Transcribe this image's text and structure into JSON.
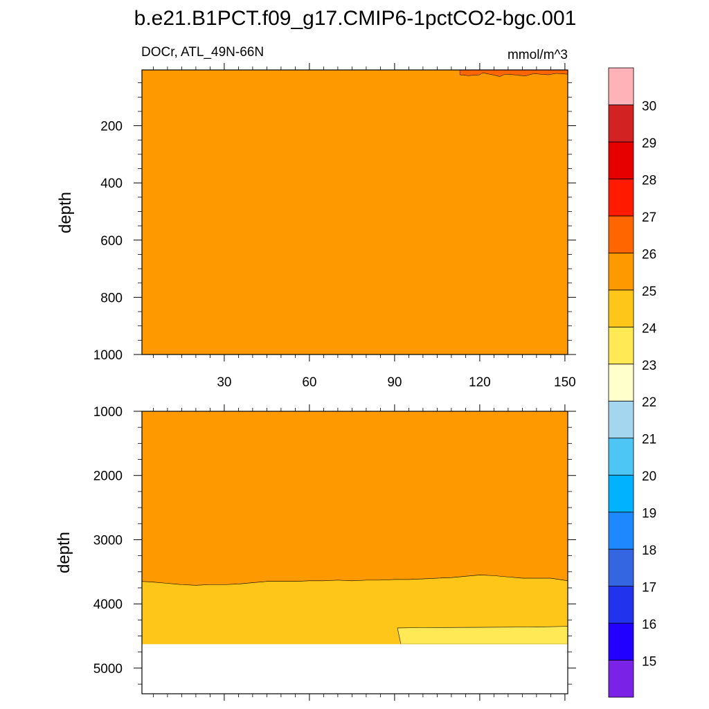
{
  "chart_data": {
    "type": "heatmap",
    "title": "b.e21.B1PCT.f09_g17.CMIP6-1pctCO2-bgc.001",
    "variable_label": "DOCr, ATL_49N-66N",
    "units": "mmol/m^3",
    "panels": [
      {
        "ylabel": "depth",
        "xlim": [
          1,
          151
        ],
        "ylim": [
          1000,
          5
        ],
        "x_ticks": [
          30,
          60,
          90,
          120,
          150
        ],
        "x_tick_labels": [
          "30",
          "60",
          "90",
          "120",
          "150"
        ],
        "y_ticks": [
          200,
          400,
          600,
          800,
          1000
        ],
        "y_tick_labels": [
          "200",
          "400",
          "600",
          "800",
          "1000"
        ],
        "background_value": 25.5,
        "regions": [
          {
            "value": 26.5,
            "note": "thin near-surface patches",
            "x": [
              113,
              116,
              120,
              121,
              125,
              127,
              129,
              132,
              136,
              139,
              144,
              147,
              151
            ],
            "bottom": [
              22,
              25,
              22,
              15,
              23,
              28,
              20,
              22,
              26,
              18,
              22,
              17,
              20
            ]
          }
        ]
      },
      {
        "ylabel": "depth",
        "xlim": [
          1,
          151
        ],
        "ylim": [
          5400,
          1000
        ],
        "x_ticks": [
          30,
          60,
          90,
          120,
          150
        ],
        "y_ticks": [
          1000,
          2000,
          3000,
          4000,
          5000
        ],
        "y_tick_labels": [
          "1000",
          "2000",
          "3000",
          "4000",
          "5000"
        ],
        "background_value": 25.5,
        "no_data_below_depth": 4625,
        "boundary_25": {
          "x": [
            1,
            5,
            10,
            15,
            20,
            25,
            30,
            35,
            40,
            45,
            50,
            55,
            60,
            65,
            70,
            75,
            80,
            85,
            90,
            95,
            100,
            105,
            110,
            115,
            120,
            125,
            130,
            135,
            140,
            145,
            151
          ],
          "depth": [
            3650,
            3660,
            3680,
            3700,
            3710,
            3700,
            3700,
            3690,
            3670,
            3650,
            3650,
            3650,
            3640,
            3640,
            3630,
            3640,
            3630,
            3630,
            3620,
            3620,
            3610,
            3600,
            3590,
            3570,
            3550,
            3560,
            3580,
            3600,
            3600,
            3600,
            3640
          ]
        },
        "boundary_25_value_below": 24.5,
        "region_23_24": {
          "value": 23.5,
          "x": [
            91,
            92.2,
            100,
            120,
            140,
            151
          ],
          "top": [
            4375,
            4625,
            4370,
            4365,
            4360,
            4350
          ]
        }
      }
    ],
    "colorbar": {
      "levels": [
        15,
        16,
        17,
        18,
        19,
        20,
        21,
        22,
        23,
        24,
        25,
        26,
        27,
        28,
        29,
        30
      ],
      "colors": [
        "#7a22e6",
        "#2200ff",
        "#2233ee",
        "#3366e0",
        "#1e88ff",
        "#00b2ff",
        "#4dc6f5",
        "#a4d6ef",
        "#ffffcc",
        "#ffea55",
        "#ffc61a",
        "#ff9900",
        "#ff6600",
        "#ff1a00",
        "#e60000",
        "#d32222",
        "#ffb2b7"
      ]
    }
  }
}
